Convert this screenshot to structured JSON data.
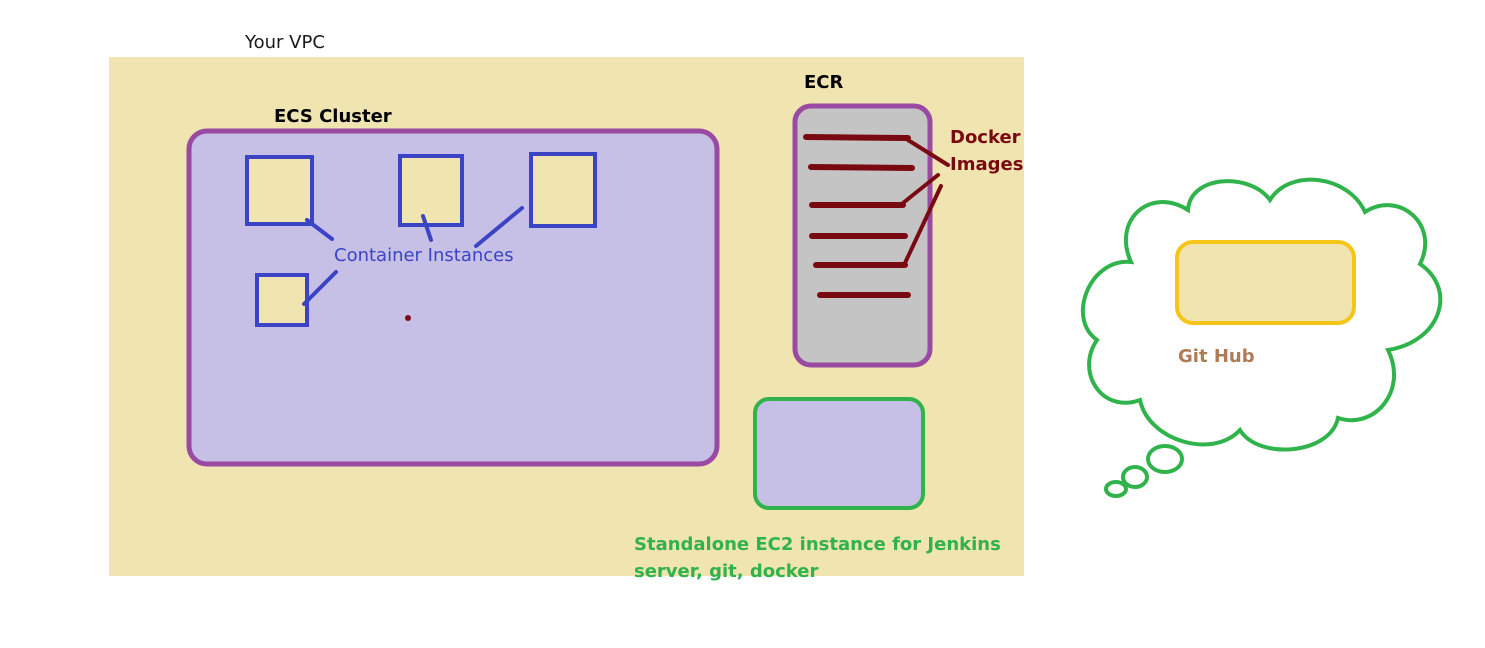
{
  "vpc": {
    "label": "Your VPC"
  },
  "ecs_cluster": {
    "label": "ECS Cluster"
  },
  "container_instances": {
    "label": "Container Instances"
  },
  "ecr": {
    "label": "ECR"
  },
  "docker_images": {
    "line1": "Docker",
    "line2": "Images"
  },
  "ec2": {
    "line1": "Standalone EC2 instance for Jenkins",
    "line2": "server, git, docker"
  },
  "github": {
    "label": "Git Hub"
  },
  "colors": {
    "vpc_fill": "#f0e4b0",
    "cluster_fill": "#c6bfe6",
    "purple_border": "#9a4aa3",
    "blue": "#3b44c4",
    "ecr_fill": "#c4c4c4",
    "dark_red": "#7a0a12",
    "green": "#2fb34a",
    "yellow": "#f5c518",
    "git_text": "#b07a55"
  }
}
